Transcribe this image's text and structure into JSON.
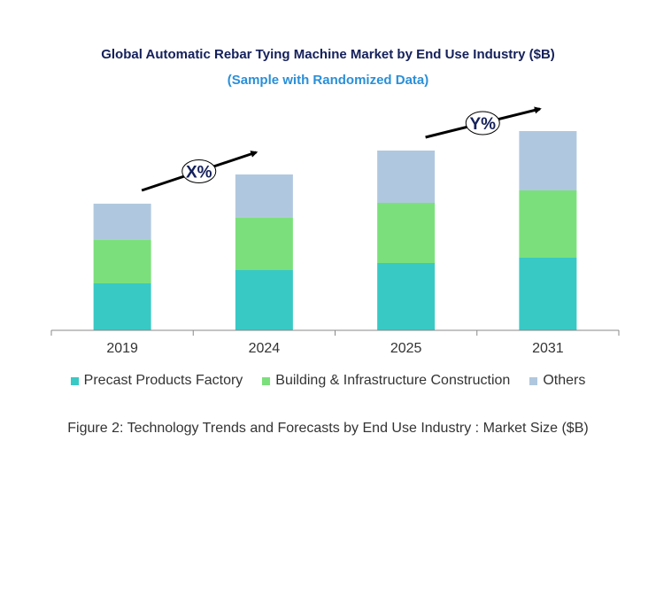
{
  "chart_data": {
    "type": "bar",
    "stacked": true,
    "title": "Global Automatic Rebar Tying Machine Market by End Use Industry ($B)",
    "subtitle": "(Sample with Randomized Data)",
    "categories": [
      "2019",
      "2024",
      "2025",
      "2031"
    ],
    "series": [
      {
        "name": "Precast Products Factory",
        "color": "#38c9c5",
        "values": [
          5.3,
          6.8,
          7.6,
          8.2
        ]
      },
      {
        "name": "Building & Infrastructure Construction",
        "color": "#7be07b",
        "values": [
          4.9,
          5.9,
          6.8,
          7.6
        ]
      },
      {
        "name": "Others",
        "color": "#b0c8df",
        "values": [
          4.1,
          4.9,
          5.9,
          6.7
        ]
      }
    ],
    "ylim": [
      0,
      25
    ],
    "grid": false,
    "y_axis_shown": false,
    "legend_placement": "bottom",
    "annotations": [
      {
        "label": "X%",
        "from": "2019",
        "to": "2024"
      },
      {
        "label": "Y%",
        "from": "2025",
        "to": "2031"
      }
    ],
    "caption": "Figure 2: Technology  Trends  and Forecasts by End Use Industry  : Market Size ($B)"
  }
}
